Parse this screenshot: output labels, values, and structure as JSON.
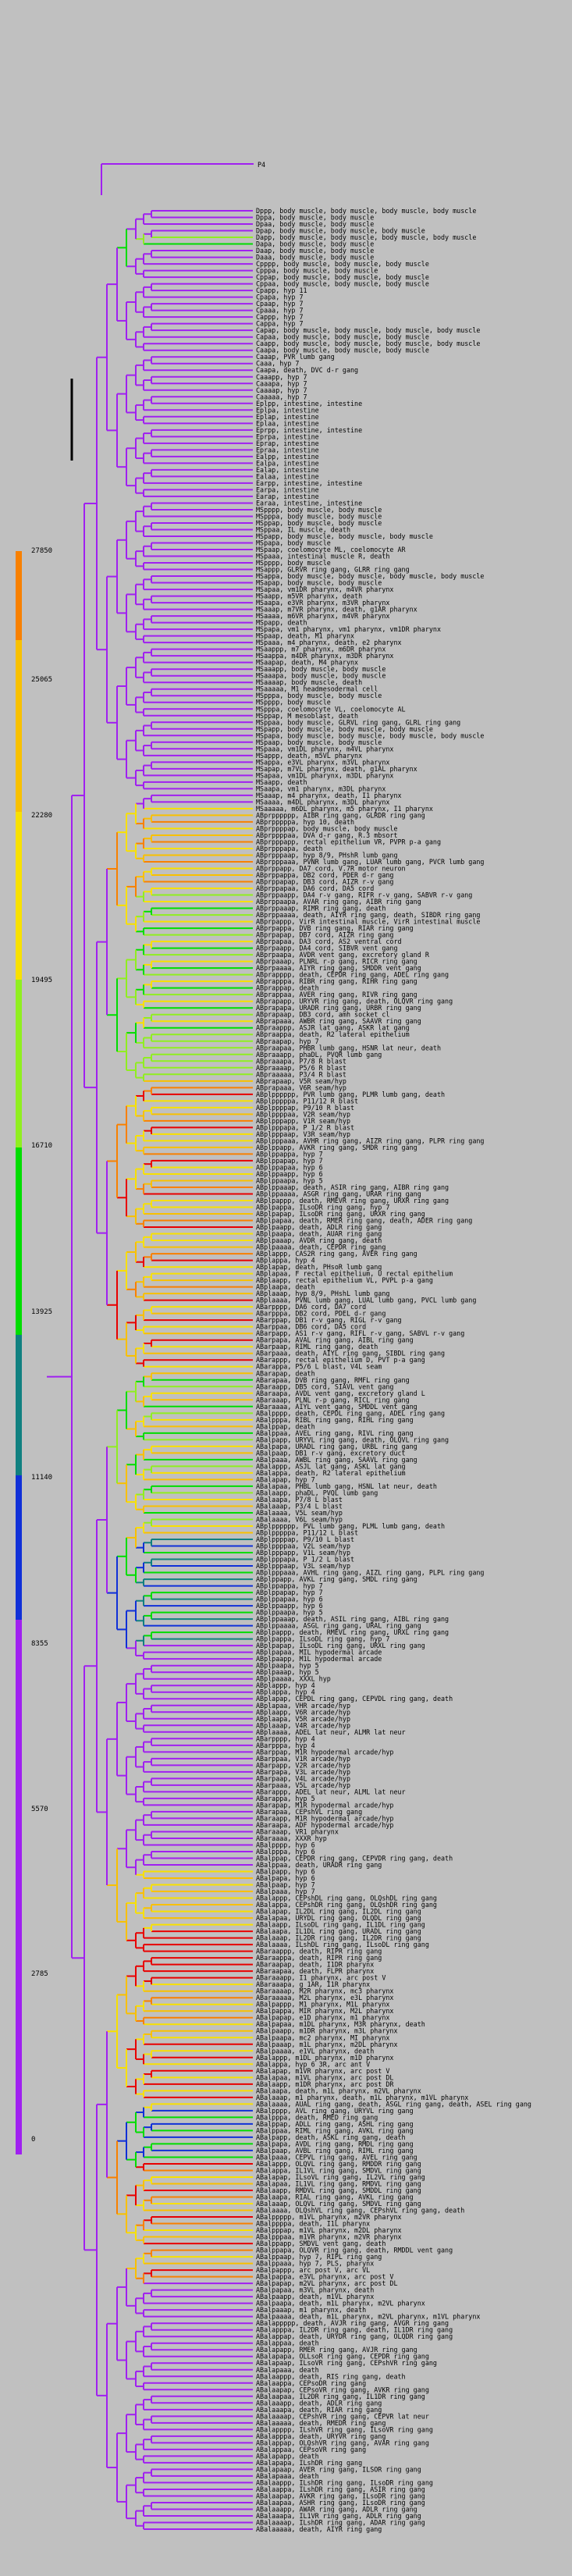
{
  "root_label": "P4",
  "colors": {
    "background": "#c0c0c0",
    "purple": "#a020f0",
    "blue": "#1030d8",
    "teal": "#108080",
    "green": "#00dd00",
    "lime": "#90ee20",
    "yellow": "#f8e000",
    "gold": "#f8c000",
    "orange": "#f88000",
    "red": "#e80000"
  },
  "scale_ticks": [
    "27850",
    "25065",
    "22280",
    "19495",
    "16710",
    "13925",
    "11140",
    "8355",
    "5570",
    "2785",
    "0"
  ],
  "leaves": [
    "Dppp, body muscle, body muscle, body muscle, body muscle",
    "Dppa, body muscle, body muscle",
    "Dpaa, body muscle, body muscle",
    "Dpap, body muscle, body muscle, body muscle",
    "Dapp, body muscle, body muscle, body muscle, body muscle",
    "Dapa, body muscle, body muscle",
    "Daap, body muscle, body muscle",
    "Daaa, body muscle, body muscle",
    "Cpppp, body muscle, body muscle, body muscle",
    "Cpppa, body muscle, body muscle",
    "Cppap, body muscle, body muscle, body muscle",
    "Cppaa, body muscle, body muscle, body muscle",
    "Cpapp, hyp 11",
    "Cpapa, hyp 7",
    "Cpaap, hyp 7",
    "Cpaaa, hyp 7",
    "Cappp, hyp 7",
    "Cappa, hyp 7",
    "Capap, body muscle, body muscle, body muscle, body muscle",
    "Capaa, body muscle, body muscle, body muscle",
    "Caapp, body muscle, body muscle, body muscle, body muscle",
    "Caapa, body muscle, body muscle, body muscle",
    "Caaap, PVR lumb gang",
    "Caaa, hyp 7",
    "Caapa, death, DVC d-r gang",
    "Caaapp, hyp 7",
    "Caaapa, hyp 7",
    "Caaaap, hyp 7",
    "Caaaaa, hyp 7",
    "Eplpp, intestine, intestine",
    "Eplpa, intestine",
    "Eplap, intestine",
    "Eplaa, intestine",
    "Eprpp, intestine, intestine",
    "Eprpa, intestine",
    "Eprap, intestine",
    "Epraa, intestine",
    "Ealpp, intestine",
    "Ealpa, intestine",
    "Ealap, intestine",
    "Ealaa, intestine",
    "Earpp, intestine, intestine",
    "Earpa, intestine",
    "Earap, intestine",
    "Earaa, intestine, intestine",
    "MSpppp, body muscle, body muscle",
    "MSpppa, body muscle, body muscle",
    "MSppap, body muscle, body muscle",
    "MSppaa, IL muscle, death",
    "MSpapp, body muscle, body muscle, body muscle",
    "MSpapa, body muscle",
    "MSpaap, coelomocyte ML, coelomocyte AR",
    "MSpaaa, intestinal muscle R, death",
    "MSpppp, body muscle",
    "MSappp, GLRVR ring gang, GLRR ring gang",
    "MSappa, body muscle, body muscle, body muscle, body muscle",
    "MSapap, body muscle, body muscle",
    "MSapaa, vm1DR pharynx, m4VR pharynx",
    "MSaapp, m5VR pharynx, death",
    "MSaapa, e3VR pharynx, m3VR pharynx",
    "MSaaap, m7VR pharynx, death, g1AR pharynx",
    "MSaaaa, m6VR pharynx, m4VR pharynx",
    "MSpapp, death",
    "MSpapa, vm1 pharynx, vm1 pharynx, vm1DR pharynx",
    "MSpaap, death, M1 pharynx",
    "MSpaaa, m4 pharynx, death, e2 pharynx",
    "MSaappp, m7 pharynx, m6DR pharynx",
    "MSaappa, m4DR pharynx, m3DR pharynx",
    "MSaapap, death, M4 pharynx",
    "MSaaapp, body muscle, body muscle",
    "MSaaapa, body muscle, body muscle",
    "MSaaaap, body muscle, death",
    "MSaaaaa, M1 headmesodermal cell",
    "MSpppa, body muscle, body muscle",
    "MSpppp, body muscle",
    "MSpppa, coelomocyte VL, coelomocyte AL",
    "MSppap, M mesoblast, death",
    "MSppaa, body muscle, GLRVL ring gang, GLRL ring gang",
    "MSpapp, body muscle, body muscle, body muscle",
    "MSpapa, body muscle, body muscle, body muscle, body muscle",
    "MSpaap, body muscle, body muscle",
    "MSpaaa, vm1DL pharynx, m4VL pharynx",
    "MSappp, death, m5VL pharynx",
    "MSappa, e3VL pharynx, m3VL pharynx",
    "MSapap, m7VL pharynx, death, g1AL pharynx",
    "MSapaa, vm1DL pharynx, m3DL pharynx",
    "MSaapp, death",
    "MSaapa, vm1 pharynx, m3DL pharynx",
    "MSaaap, m4 pharynx, death, I1 pharynx",
    "MSaaaa, m4DL pharynx, m3DL pharynx",
    "MSaaaaa, m6DL pharynx, m5 pharynx, I1 pharynx",
    "ABprpppppp, AIBR ring gang, GLRDR ring gang",
    "ABprpppppa, hyp 10, death",
    "ABprppppap, body muscle, body muscle",
    "ABprppppaa, DVA d-r gang, R.3 mbsort",
    "ABprpppapp, rectal epithelium VR, PVPR p-a gang",
    "ABprpppapa, death",
    "ABprpppaap, hyp 8/9, PHshR lumb gang",
    "ABprpppaaa, PVNR lumb gang, LUAR lumb gang, PVCR lumb gang",
    "ABprppapp, DA7 cord, V.7R motor neuron",
    "ABprppappa, DB2 cord, PDER d-r gang",
    "ABprppapap, DB3 cord, AIZR r-v gang",
    "ABprppapaa, DA6 cord, DA5 cord",
    "ABprppaapp, DA4 r-v gang, RIFR r-v gang, SABVR r-v gang",
    "ABprppaapa, AVAR ring gang, AIBR ring gang",
    "ABprppaaap, RIMR ring gang, death",
    "ABprppaaaa, death, AIYR ring gang, death, SIBDR ring gang",
    "ABprpappp, VirR intestinal muscle, VirR intestinal muscle",
    "ABprpappa, DVB ring gang, RIAR ring gang",
    "ABprpapap, DB7 cord, AIZR ring gang",
    "ABprpapaa, DA3 cord, AS2 ventral cord",
    "ABprpaapp, DA4 cord, SIBVR vent gang",
    "ABprpaapa, AVDR vent gang, excretory gland R",
    "ABprpaaap, PLNRL r-p gang, RICR ring gang",
    "ABprpaaaa, AIYR ring gang, SMDDR vent gang",
    "ABprapppp, death, CEPDR ring gang, ADEL ring gang",
    "ABprapppa, RIBR ring gang, RIHR ring gang",
    "ABprappap, death",
    "ABprappaa, AVER ring gang, RIVR ring gang",
    "ABprapapp, URYVR ring gang, death, OLQVR ring gang",
    "ABprapapa, URADR ring gang, URBR ring gang",
    "ABprapaap, DB3 cord, amh socket cl",
    "ABprapaaa, AWBR ring gang, SAAVR ring gang",
    "ABpraappp, ASJR lat gang, ASKR lat gang",
    "ABpraappa, death, R2 lateral epithelium",
    "ABpraapap, hyp 7",
    "ABpraapaa, PHBR lumb gang, HSNR lat neur, death",
    "ABpraaapp, phaDL, PVQR lumb gang",
    "ABpraaapa, P7/8 R blast",
    "ABpraaaap, P5/6 R blast",
    "ABpraaaaa, P3/4 R blast",
    "ABprapaap, V5R seam/hyp",
    "ABprapaaa, V6R seam/hyp",
    "ABplpppppp, PVR lumb gang, PLMR lumb gang, death",
    "ABplpppppa, P11/12 R blast",
    "ABplppppap, P9/10 R blast",
    "ABplppppaa, V2R seam/hyp",
    "ABplpppapp, V1R seam/hyp",
    "ABplpppapa, P 1/2 R blast",
    "ABplpppaap, V3R seam/hyp",
    "ABplpppaaa, AVHR ring gang, AIZR ring gang, PLPR ring gang",
    "ABplppapp, AVKR ring gang, SMDR ring gang",
    "ABplppappa, hyp 7",
    "ABplppapap, hyp 7",
    "ABplppapaa, hyp 6",
    "ABplppaapp, hyp 6",
    "ABplppaapa, hyp 5",
    "ABplppaaap, death, ASIR ring gang, AIBR ring gang",
    "ABplppaaaa, ASGR ring gang, URAR ring gang",
    "ABplpappp, death, RMEVR ring gang, URXR ring gang",
    "ABplpappa, ILsoDR ring gang, hyp 7",
    "ABplpapap, ILsoDR ring gang, URXR ring gang",
    "ABplpapaa, death, RMER ring gang, death, ADER ring gang",
    "ABplpaapp, death, ADLR ring gang",
    "ABplpaapa, death, AUAR ring gang",
    "ABplpaaap, AVDR ring gang, death",
    "ABplpaaaa, death, CEPDR ring gang",
    "ABplappp, CAS2R ring gang, AVER ring gang",
    "ABplappa, hyp 4",
    "ABplapap, death, PHsoR lumb gang",
    "ABplapaa, F rectal epithelium, U rectal epithelium",
    "ABplaapp, rectal epithelium VL, PVPL p-a gang",
    "ABplaapa, death",
    "ABplaaap, hyp 8/9, PHshL lumb gang",
    "ABplaaaa, PVNL lumb gang, LUAL lumb gang, PVCL lumb gang",
    "ABarpppp, DA6 cord, DA7 cord",
    "ABarpppa, DB2 cord, PDEL d-r gang",
    "ABarppap, DB1 r-v gang, RIGL r-v gang",
    "ABarppaa, DB6 cord, DA5 cord",
    "ABarpapp, AS1 r-v gang, RIFL r-v gang, SABVL r-v gang",
    "ABarpapa, AVAL ring gang, AIBL ring gang",
    "ABarpaap, RIML ring gang, death",
    "ABarpaaa, death, AIYL ring gang, SIBDL ring gang",
    "ABarappp, rectal epithelium D, PVT p-a gang",
    "ABarappa, P5/6 L blast, V4L seam",
    "ABarapap, death",
    "ABarapaa, DVB ring gang, RMFL ring gang",
    "ABaraapp, DB5 cord, SIAVL vent gang",
    "ABaraapa, AVDL vent gang, excretory gland L",
    "ABaraaap, PLNL r-p gang, RICL ring gang",
    "ABaraaaa, AIYL vent gang, SMDDL vent gang",
    "ABalpppp, death, CEPDL ring gang, ADEL ring gang",
    "ABalpppa, RIBL ring gang, RIHL ring gang",
    "ABalppap, death",
    "ABalppaa, AVEL ring gang, RIVL ring gang",
    "ABalpapp, URYVL ring gang, death, OLQVL ring gang",
    "ABalpapa, URADL ring gang, URBL ring gang",
    "ABalpaap, DB1 r-v gang, excretory duct",
    "ABalpaaa, AWBL ring gang, SAAVL ring gang",
    "ABalappp, ASJL lat gang, ASKL lat gang",
    "ABalappa, death, R2 lateral epithelium",
    "ABalapap, hyp 7",
    "ABalapaa, PHBL lumb gang, HSNL lat neur, death",
    "ABalaapp, phaDL, PVQL lumb gang",
    "ABalaapa, P7/8 L blast",
    "ABalaaap, P3/4 L blast",
    "ABalaaaa, V5L seam/hyp",
    "ABalaaaa, V6L seam/hyp",
    "ABplpppppp, PVL lumb gang, PLML lumb gang, death",
    "ABplpppppa, P11/12 L blast",
    "ABplppppap, P9/10 L blast",
    "ABplppppaa, V2L seam/hyp",
    "ABplpppapp, V1L seam/hyp",
    "ABplpppapa, P 1/2 L blast",
    "ABplpppaap, V3L seam/hyp",
    "ABplpppaaa, AVHL ring gang, AIZL ring gang, PLPL ring gang",
    "ABplppapp, AVKL ring gang, SMDL ring gang",
    "ABplppappa, hyp 7",
    "ABplppapap, hyp 7",
    "ABplppapaa, hyp 6",
    "ABplppaapp, hyp 6",
    "ABplppaapa, hyp 5",
    "ABplppaaap, death, ASIL ring gang, AIBL ring gang",
    "ABplppaaaa, ASGL ring gang, URAL ring gang",
    "ABplpappp, death, RMEVL ring gang, URXL ring gang",
    "ABplpappa, ILsoDL ring gang, hyp 7",
    "ABplpapap, ILsoDL ring gang, URXL ring gang",
    "ABplpapaa, MIL hypodermal arcade",
    "ABplpaapp, M1L hypodermal arcade",
    "ABplpaapa, hyp 5",
    "ABplpaaap, hyp 5",
    "ABplpaaaa, XXXL hyp",
    "ABplappp, hyp 4",
    "ABplappa, hyp 4",
    "ABplapap, CEPDL ring gang, CEPVDL ring gang, death",
    "ABplapaa, VHR arcade/hyp",
    "ABplaapp, V6R arcade/hyp",
    "ABplaapa, V5R arcade/hyp",
    "ABplaaap, V4R arcade/hyp",
    "ABplaaaa, ADEL lat neur, ALMR lat neur",
    "ABarpppp, hyp 4",
    "ABarpppa, hyp 4",
    "ABarppap, M1R hypodermal arcade/hyp",
    "ABarppaa, V1R arcade/hyp",
    "ABarpapp, V2R arcade/hyp",
    "ABarpapa, V3L arcade/hyp",
    "ABarpaap, V4L arcade/hyp",
    "ABarpaaa, V5L arcade/hyp",
    "ABarappp, ADEL lat neur, ALML lat neur",
    "ABarappa, hyp 5",
    "ABarapap, M1R hypodermal arcade/hyp",
    "ABarapaa, CEPshVL ring gang",
    "ABaraapp, M1R hypodermal arcade/hyp",
    "ABaraapa, ADF hypodermal arcade/hyp",
    "ABaraaap, VR1 pharynx",
    "ABaraaaa, XXXR hyp",
    "ABalpppp, hyp 6",
    "ABalpppa, hyp 6",
    "ABalppap, CEPDR ring gang, CEPVDR ring gang, death",
    "ABalppaa, death, URADR ring gang",
    "ABalpapp, hyp 6",
    "ABalpapa, hyp 6",
    "ABalpaap, hyp 7",
    "ABalpaaa, hyp 7",
    "ABalappp, CEPshDL ring gang, OLQshDL ring gang",
    "ABalappa, CEPshDR ring gang, OLQshDR ring gang",
    "ABalapap, IL2DL ring gang, IL2DL ring gang",
    "ABalapaa, URYDL ring gang, OLQDL ring gang",
    "ABalaapp, ILsoDL ring gang, IL1DL ring gang",
    "ABalaapa, IL1DL ring gang, URADL ring gang",
    "ABalaaap, IL2DR ring gang, IL2DR ring gang",
    "ABalaaaa, ILshDL ring gang, ILsoDL ring gang",
    "ABaraappp, death, RIPR ring gang",
    "ABaraappa, death, RIPR ring gang",
    "ABaraapap, death, I1DR pharynx",
    "ABaraapaa, death, FLPR pharynx",
    "ABaraaapp, I1 pharynx, arc post V",
    "ABaraaapa, g 1AR, I1R pharynx",
    "ABaraaaap, M2R pharynx, mc3 pharynx",
    "ABaraaaaa, M2L pharynx, e3L pharynx",
    "ABalpappp, M1 pharynx, M1L pharynx",
    "ABalpappa, MIR pharynx, M2L pharynx",
    "ABalpapap, e1D pharynx, m1 pharynx",
    "ABalpapaa, m1DL pharynx, M3R pharynx, death",
    "ABalpaapp, m1DR pharynx, m3L pharynx",
    "ABalpaapa, mc2 pharynx, MI pharynx",
    "ABalpaaap, m1L pharynx, m2DL pharynx",
    "ABalpaaaa, e1VL pharynx, death",
    "ABalappp, m1DL pharynx, m1D pharynx",
    "ABalappa, hyp 6 3R, arc ant V",
    "ABalapap, m1VR pharynx, arc post V",
    "ABalapaa, m1VL pharynx, arc post DL",
    "ABalaapp, m1DR pharynx, arc post DR",
    "ABalaapa, death, m1L pharynx, m2VL pharynx",
    "ABalaaap, m1 pharynx, death, m1L pharynx, m1VL pharynx",
    "ABalaaaa, AUAL ring gang, death, ASGL ring gang, death, ASEL ring gang",
    "ABalpppp, AVL ring gang, URYVL ring gang",
    "ABalpppa, death, RMED ring gang",
    "ABalppap, ADLL ring gang, ASHL ring gang",
    "ABalppaa, RIML ring gang, AVKL ring gang",
    "ABalpapp, death, ASKL ring gang, death",
    "ABalpapa, AVDL ring gang, RMDL ring gang",
    "ABalpaap, AVBL ring gang, RIML ring gang",
    "ABalpaaa, CEPVL ring gang, AVEL ring gang",
    "ABalappp, OLQVL ring gang, RMDDR ring gang",
    "ABalappa, IL1VL ring gang, SMDVL ring gang",
    "ABalapap, ILsoVL ring gang, IL2VL ring gang",
    "ABalapaa, IL1VL ring gang, RMDVL ring gang",
    "ABalaapp, RMDVL ring gang, SMDDL ring gang",
    "ABalaapa, RIAL ring gang, AVKL ring gang",
    "ABalaaap, OLQVL ring gang, SMDVL ring gang",
    "ABalaaaa, OLQshVL ring gang, CEPshVL ring gang, death",
    "ABalppppp, m1VL pharynx, m2VR pharynx",
    "ABalppppa, death, I1L pharynx",
    "ABalpppap, m1VL pharynx, m2DL pharynx",
    "ABalpppaa, m1VR pharynx, m2VR pharynx",
    "ABalppapp, SMDVL vent gang, death",
    "ABalppapa, OLQVR ring gang, death, RMDDL vent gang",
    "ABalppaap, hyp 7, RIPL ring gang",
    "ABalppaaa, hyp 7, PLS, pharynx",
    "ABalpappp, arc post V, arc VL",
    "ABalpappa, e3VL pharynx, arc post V",
    "ABalpapap, m2VL pharynx, arc post DL",
    "ABalpapaa, m3VL pharynx, death",
    "ABalpaapp, death, m1VL pharynx",
    "ABalpaapa, death, m1L pharynx, m2VL pharynx",
    "ABalpaaap, m1 pharynx, death",
    "ABalpaaaa, death, m1L pharynx, m2VL pharynx, m1VL pharynx",
    "ABalappppp, death, AVJR ring gang, AVGR ring gang",
    "ABalapppa, IL2DR ring gang, death, IL1DR ring gang",
    "ABalappap, death, URYDR ring gang, OLQDR ring gang",
    "ABalappaa, death",
    "ABalapapp, RMER ring gang, AVJR ring gang",
    "ABalapapa, OLLsoR ring gang, CEPDR ring gang",
    "ABalapaap, ILsoVR ring gang, CEPshVR ring gang",
    "ABalapaaa, death",
    "ABalaappp, death, RIS ring gang, death",
    "ABalaappa, CEPsoDR ring gang",
    "ABalaapap, CEPsoVR ring gang, AVKR ring gang",
    "ABalaapaa, IL2DR ring gang, IL1DR ring gang",
    "ABalaaapp, death, ADLR ring gang",
    "ABalaaapa, death, RIAR ring gang",
    "ABalaaaap, CEPshVR ring gang, CEPVR lat neur",
    "ABalaaaaa, death, RMEDR ring gang",
    "ABalapppp, ILshVR ring gang, ILsoVR ring gang",
    "ABalapppa, death, URYVR ring gang",
    "ABalappap, OLQshVR ring gang, AVAR ring gang",
    "ABalappaa, CEPsoVR ring gang",
    "ABalapapp, death",
    "ABalapapa, ILshDR ring gang",
    "ABalapaap, AVER ring gang, ILSOR ring gang",
    "ABalapaaa, death",
    "ABalaappp, ILshDR ring gang, ILsoDR ring gang",
    "ABalaappa, ILshDR ring gang, ASIR ring gang",
    "ABalaapap, AVKR ring gang, ILsoDR ring gang",
    "ABalaapaa, ASHR ring gang, ILsoDR ring gang",
    "ABalaaapp, AWAR ring gang, ADLR ring gang",
    "ABalaaapa, IL1VR ring gang, ADLR ring gang",
    "ABalaaaap, ILshDR ring gang, ADAR ring gang",
    "ABalaaaaa, death, AIYR ring gang"
  ]
}
